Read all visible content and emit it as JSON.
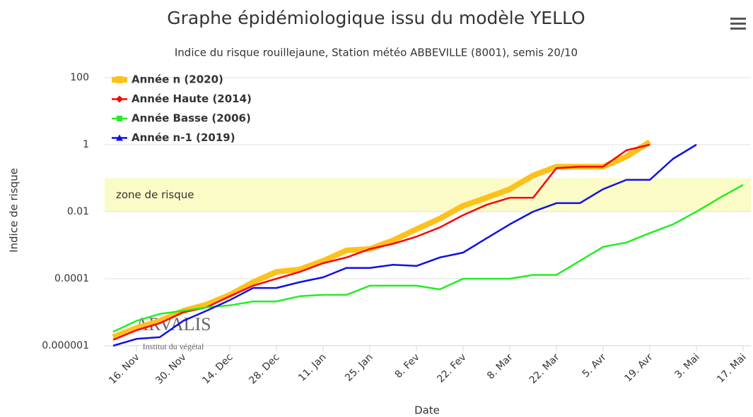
{
  "chart_data": {
    "type": "line",
    "title": "Graphe épidémiologique issu du modèle YELLO",
    "subtitle": "Indice du risque rouillejaune, Station météo ABBEVILLE (8001), semis 20/10",
    "y_label": "Indice de risque",
    "x_label": "Date",
    "watermark": [
      "ARVALIS",
      "Institut du végétal"
    ],
    "log_scale": true,
    "grid": true,
    "legend_position": "top-left",
    "plot_band": {
      "from": 0.01,
      "to": 0.1,
      "label": "zone de risque",
      "color": "#fbfbc8"
    },
    "ylim": [
      1e-06,
      100
    ],
    "yticks": [
      {
        "value": 1e-06,
        "label": "0.000001"
      },
      0.0001,
      0.01,
      1,
      100
    ],
    "categories": [
      null,
      "16. Nov",
      null,
      "30. Nov",
      null,
      "14. Dec",
      null,
      "28. Dec",
      null,
      "11. Jan",
      null,
      "25. Jan",
      null,
      "8. Fev",
      null,
      "22. Fev",
      null,
      "8. Mar",
      null,
      "22. Mar",
      null,
      "5. Avr",
      null,
      "19. Avr",
      null,
      "3. Mai",
      null,
      "17. Mai"
    ],
    "series": [
      {
        "name": "Année n (2020)",
        "color": "#fcc21b",
        "values": [
          1.8e-06,
          3.4e-06,
          5.5e-06,
          1.1e-05,
          1.7e-05,
          3.3e-05,
          7.9e-05,
          0.00016,
          0.00019,
          0.00034,
          0.0007,
          0.00077,
          0.0014,
          0.003,
          0.0062,
          0.015,
          0.026,
          0.047,
          0.12,
          0.22,
          0.22,
          0.22,
          0.44,
          1.2,
          null,
          null,
          null,
          null
        ]
      },
      {
        "name": "Année Haute (2014)",
        "color": "#ff0000",
        "values": [
          1.5e-06,
          2.9e-06,
          4.7e-06,
          1e-05,
          1.4e-05,
          3e-05,
          6.2e-05,
          0.0001,
          0.00016,
          0.00029,
          0.00043,
          0.00077,
          0.0011,
          0.0018,
          0.0034,
          0.0079,
          0.016,
          0.026,
          0.026,
          0.2,
          0.22,
          0.22,
          0.68,
          1,
          null,
          null,
          null,
          null
        ]
      },
      {
        "name": "Année Basse (2006)",
        "color": "#22ee22",
        "values": [
          2.6e-06,
          5.5e-06,
          8.9e-06,
          1.1e-05,
          1.4e-05,
          1.6e-05,
          2.1e-05,
          2.1e-05,
          3e-05,
          3.3e-05,
          3.3e-05,
          6.2e-05,
          6.2e-05,
          6.2e-05,
          4.8e-05,
          0.0001,
          0.0001,
          0.0001,
          0.00013,
          0.00013,
          0.00034,
          0.00089,
          0.0012,
          0.0023,
          0.0042,
          0.01,
          0.026,
          0.063
        ]
      },
      {
        "name": "Année n-1 (2019)",
        "color": "#1010e6",
        "values": [
          1e-06,
          1.6e-06,
          1.8e-06,
          5.5e-06,
          1.1e-05,
          2.3e-05,
          5.3e-05,
          5.3e-05,
          7.9e-05,
          0.00011,
          0.00021,
          0.00021,
          0.00026,
          0.00024,
          0.00043,
          0.0006,
          0.0016,
          0.0042,
          0.01,
          0.018,
          0.018,
          0.047,
          0.089,
          0.089,
          0.38,
          1,
          null,
          null
        ]
      }
    ]
  }
}
